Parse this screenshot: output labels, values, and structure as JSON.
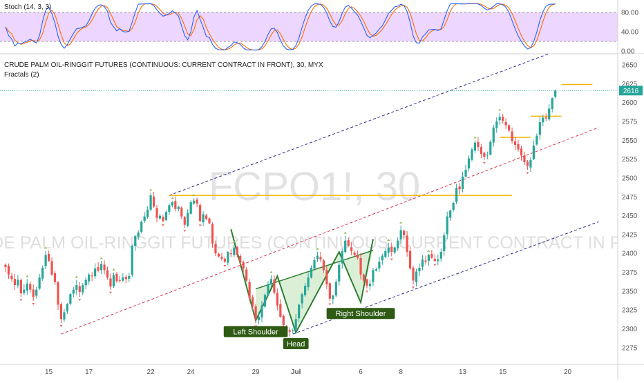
{
  "chart_data": {
    "type": "candlestick",
    "title": "CRUDE PALM OIL-RINGGIT FUTURES (CONTINUOUS: CURRENT CONTRACT IN FRONT), 30, MYX",
    "indicator_label": "Fractals (2)",
    "watermark_symbol": "FCPO1!, 30",
    "watermark_name": "CRUDE PALM OIL-RINGGIT FUTURES (CONTINUOUS: CURRENT CONTRACT IN FRONT)",
    "last_price": "2616",
    "ylim": [
      2262,
      2662
    ],
    "y_ticks": [
      "2275",
      "2300",
      "2325",
      "2350",
      "2375",
      "2400",
      "2425",
      "2450",
      "2475",
      "2500",
      "2525",
      "2550",
      "2575",
      "2600",
      "2625",
      "2650"
    ],
    "x_ticks": [
      {
        "label": "15",
        "i": 14
      },
      {
        "label": "17",
        "i": 27
      },
      {
        "label": "22",
        "i": 47
      },
      {
        "label": "24",
        "i": 60
      },
      {
        "label": "29",
        "i": 81
      },
      {
        "label": "Jul",
        "i": 94
      },
      {
        "label": "6",
        "i": 115
      },
      {
        "label": "8",
        "i": 128
      },
      {
        "label": "13",
        "i": 148
      },
      {
        "label": "15",
        "i": 161
      },
      {
        "label": "20",
        "i": 182
      }
    ],
    "closes": [
      2382,
      2372,
      2366,
      2358,
      2365,
      2347,
      2352,
      2360,
      2352,
      2342,
      2352,
      2368,
      2381,
      2398,
      2390,
      2372,
      2362,
      2332,
      2313,
      2322,
      2333,
      2346,
      2352,
      2358,
      2349,
      2358,
      2365,
      2372,
      2370,
      2380,
      2377,
      2386,
      2378,
      2368,
      2356,
      2371,
      2363,
      2364,
      2368,
      2366,
      2370,
      2410,
      2423,
      2428,
      2442,
      2449,
      2458,
      2477,
      2462,
      2447,
      2450,
      2443,
      2455,
      2464,
      2468,
      2459,
      2462,
      2449,
      2438,
      2454,
      2468,
      2470,
      2466,
      2443,
      2452,
      2446,
      2440,
      2413,
      2400,
      2396,
      2393,
      2389,
      2402,
      2399,
      2408,
      2398,
      2388,
      2380,
      2364,
      2341,
      2330,
      2313,
      2316,
      2331,
      2345,
      2359,
      2366,
      2348,
      2331,
      2316,
      2305,
      2298,
      2296,
      2298,
      2313,
      2332,
      2346,
      2357,
      2368,
      2381,
      2391,
      2397,
      2392,
      2378,
      2359,
      2340,
      2344,
      2362,
      2385,
      2403,
      2417,
      2410,
      2403,
      2398,
      2394,
      2372,
      2364,
      2357,
      2360,
      2378,
      2379,
      2389,
      2397,
      2403,
      2408,
      2402,
      2408,
      2417,
      2431,
      2424,
      2402,
      2380,
      2364,
      2376,
      2381,
      2392,
      2389,
      2398,
      2394,
      2390,
      2392,
      2402,
      2424,
      2449,
      2457,
      2467,
      2487,
      2485,
      2502,
      2511,
      2526,
      2538,
      2547,
      2541,
      2532,
      2528,
      2531,
      2548,
      2567,
      2575,
      2581,
      2576,
      2570,
      2563,
      2549,
      2544,
      2538,
      2530,
      2521,
      2516,
      2524,
      2543,
      2556,
      2574,
      2580,
      2579,
      2592,
      2606,
      2616
    ],
    "hlines": [
      {
        "x0": 53,
        "x1": 164,
        "y": 2477
      },
      {
        "x0": 160,
        "x1": 170,
        "y": 2554
      },
      {
        "x0": 170,
        "x1": 180,
        "y": 2582
      },
      {
        "x0": 180,
        "x1": 190,
        "y": 2624
      }
    ],
    "channel": {
      "upper": {
        "i0": 53,
        "y0": 2477,
        "i1": 176,
        "y1": 2665
      },
      "mid": {
        "i0": 18,
        "y0": 2293,
        "i1": 192,
        "y1": 2567
      },
      "lower": {
        "i0": 93,
        "y0": 2293,
        "i1": 192,
        "y1": 2442
      }
    },
    "pattern_points": [
      {
        "i": 73,
        "y": 2432
      },
      {
        "i": 81,
        "y": 2311
      },
      {
        "i": 88,
        "y": 2370
      },
      {
        "i": 94,
        "y": 2295
      },
      {
        "i": 108,
        "y": 2402
      },
      {
        "i": 115,
        "y": 2335
      },
      {
        "i": 119,
        "y": 2419
      }
    ],
    "neckline": {
      "i0": 81,
      "y0": 2353,
      "i1": 119,
      "y1": 2404
    },
    "pattern_labels": [
      {
        "text": "Left Shoulder",
        "i": 81,
        "y": 2311
      },
      {
        "text": "Head",
        "i": 94,
        "y": 2295
      },
      {
        "text": "Right Shoulder",
        "i": 115,
        "y": 2335
      }
    ],
    "colors": {
      "up": "#26a69a",
      "down": "#ef5350",
      "level": "#f5b400",
      "mid": "#e0304d",
      "channel": "#2a2a9a",
      "pattern": "#2e7d32",
      "label_bg": "#2e5a14",
      "price_tag": "#26a69a"
    }
  },
  "stoch": {
    "label": "Stoch (14, 3, 3)",
    "ylim": [
      0,
      100
    ],
    "ticks": [
      "80.00",
      "40.00",
      "0.00"
    ],
    "upper_band": 80,
    "lower_band": 20,
    "band_color": "#e7c8ff",
    "k_color": "#2962ff",
    "d_color": "#ff6d00"
  }
}
